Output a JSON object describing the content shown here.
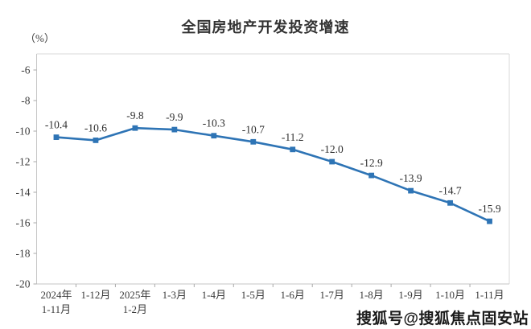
{
  "title": "全国房地产开发投资增速",
  "unit_label": "（%）",
  "watermark": "搜狐号@搜狐焦点固安站",
  "chart_data": {
    "type": "line",
    "title": "全国房地产开发投资增速",
    "ylabel": "（%）",
    "xlabel": "",
    "categories": [
      "2024年\n1-11月",
      "1-12月",
      "2025年\n1-2月",
      "1-3月",
      "1-4月",
      "1-5月",
      "1-6月",
      "1-7月",
      "1-8月",
      "1-9月",
      "1-10月",
      "1-11月"
    ],
    "values": [
      -10.4,
      -10.6,
      -9.8,
      -9.9,
      -10.3,
      -10.7,
      -11.2,
      -12.0,
      -12.9,
      -13.9,
      -14.7,
      -15.9
    ],
    "data_labels": [
      "-10.4",
      "-10.6",
      "-9.8",
      "-9.9",
      "-10.3",
      "-10.7",
      "-11.2",
      "-12.0",
      "-12.9",
      "-13.9",
      "-14.7",
      "-15.9"
    ],
    "ylim": [
      -20,
      -6
    ],
    "yticks": [
      -6,
      -8,
      -10,
      -12,
      -14,
      -16,
      -18,
      -20
    ],
    "grid": false,
    "legend": null,
    "line_color": "#2E74B5",
    "marker": "square",
    "marker_color": "#2E74B5",
    "axis_color": "#c6c6c6",
    "tick_color": "#a9a9a9",
    "axis_text_color": "#3b3b3b",
    "label_text_color": "#2e2e2e"
  }
}
